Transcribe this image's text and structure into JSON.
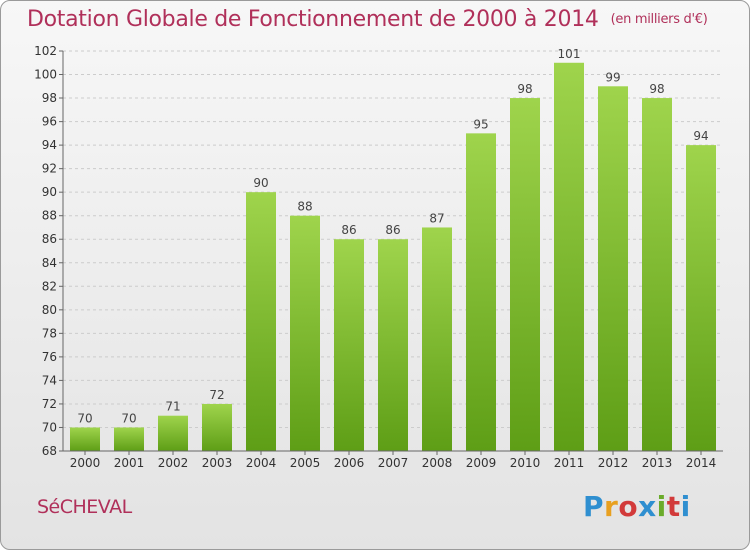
{
  "header": {
    "title": "Dotation Globale de Fonctionnement de 2000 à 2014",
    "unit": "(en milliers d'€)"
  },
  "footer": {
    "commune": "SéCHEVAL",
    "logo": {
      "letters": [
        "P",
        "r",
        "o",
        "x",
        "i",
        "t",
        "i"
      ],
      "colors": [
        "#2f8fd0",
        "#e8a020",
        "#d23a3a",
        "#2f8fd0",
        "#6aab2a",
        "#d23a3a",
        "#2f8fd0"
      ]
    }
  },
  "colors": {
    "title": "#b0305a",
    "bar_top": "#9fd44c",
    "bar_bottom": "#5e9e16",
    "grid": "#cccccc"
  },
  "chart_data": {
    "type": "bar",
    "title": "Dotation Globale de Fonctionnement de 2000 à 2014",
    "subtitle": "(en milliers d'€)",
    "xlabel": "",
    "ylabel": "",
    "categories": [
      "2000",
      "2001",
      "2002",
      "2003",
      "2004",
      "2005",
      "2006",
      "2007",
      "2008",
      "2009",
      "2010",
      "2011",
      "2012",
      "2013",
      "2014"
    ],
    "values": [
      70,
      70,
      71,
      72,
      90,
      88,
      86,
      86,
      87,
      95,
      98,
      101,
      99,
      98,
      94
    ],
    "ylim": [
      68,
      102
    ],
    "yticks": [
      68,
      70,
      72,
      74,
      76,
      78,
      80,
      82,
      84,
      86,
      88,
      90,
      92,
      94,
      96,
      98,
      100,
      102
    ],
    "grid": true,
    "legend": "none"
  }
}
